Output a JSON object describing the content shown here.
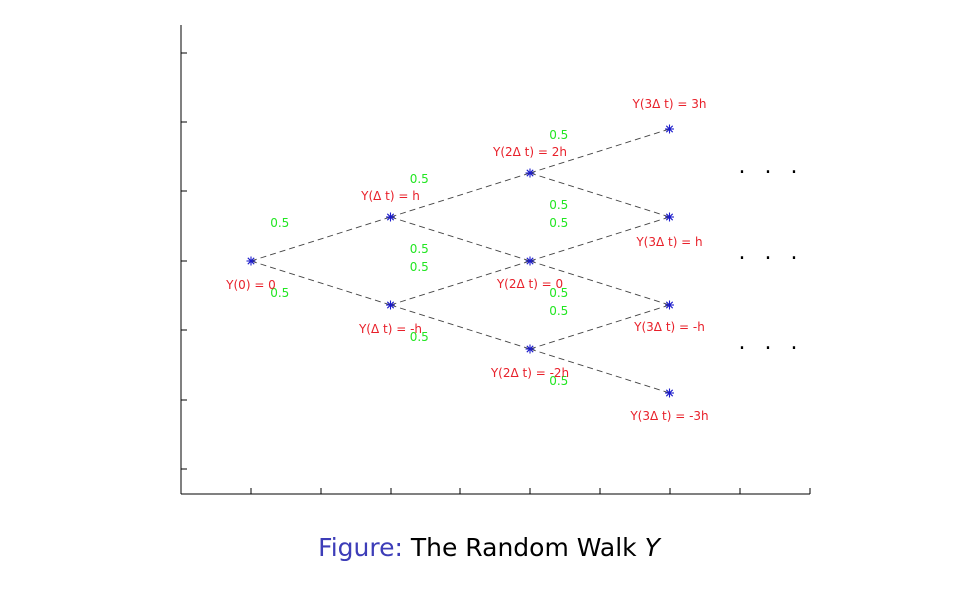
{
  "colors": {
    "node_label": "#e8202a",
    "prob_label": "#22e622",
    "node_marker": "#1c1ccc",
    "edge": "#444444",
    "caption_prefix": "#3d3db8"
  },
  "nodes": [
    {
      "id": "n0",
      "step": 0,
      "level": 0,
      "label": "Y(0) = 0"
    },
    {
      "id": "n1u",
      "step": 1,
      "level": 1,
      "label": "Y(Δ t) = h"
    },
    {
      "id": "n1d",
      "step": 1,
      "level": -1,
      "label": "Y(Δ t) = -h"
    },
    {
      "id": "n2u",
      "step": 2,
      "level": 2,
      "label": "Y(2Δ t) = 2h"
    },
    {
      "id": "n2m",
      "step": 2,
      "level": 0,
      "label": "Y(2Δ t) = 0"
    },
    {
      "id": "n2d",
      "step": 2,
      "level": -2,
      "label": "Y(2Δ t) = -2h"
    },
    {
      "id": "n3a",
      "step": 3,
      "level": 3,
      "label": "Y(3Δ t) = 3h"
    },
    {
      "id": "n3b",
      "step": 3,
      "level": 1,
      "label": "Y(3Δ t) = h"
    },
    {
      "id": "n3c",
      "step": 3,
      "level": -1,
      "label": "Y(3Δ t) = -h"
    },
    {
      "id": "n3d",
      "step": 3,
      "level": -3,
      "label": "Y(3Δ t) = -3h"
    }
  ],
  "edges": [
    {
      "from": "n0",
      "to": "n1u",
      "prob": "0.5"
    },
    {
      "from": "n0",
      "to": "n1d",
      "prob": "0.5"
    },
    {
      "from": "n1u",
      "to": "n2u",
      "prob": "0.5"
    },
    {
      "from": "n1u",
      "to": "n2m",
      "prob": "0.5"
    },
    {
      "from": "n1d",
      "to": "n2m",
      "prob": "0.5"
    },
    {
      "from": "n1d",
      "to": "n2d",
      "prob": "0.5"
    },
    {
      "from": "n2u",
      "to": "n3a",
      "prob": "0.5"
    },
    {
      "from": "n2u",
      "to": "n3b",
      "prob": "0.5"
    },
    {
      "from": "n2m",
      "to": "n3b",
      "prob": "0.5"
    },
    {
      "from": "n2m",
      "to": "n3c",
      "prob": "0.5"
    },
    {
      "from": "n2d",
      "to": "n3c",
      "prob": "0.5"
    },
    {
      "from": "n2d",
      "to": "n3d",
      "prob": "0.5"
    }
  ],
  "continuation": {
    "levels": [
      2,
      0,
      -2
    ],
    "text": ". . ."
  },
  "caption": {
    "prefix": "Figure:",
    "text": "The Random Walk",
    "variable": "Y"
  }
}
